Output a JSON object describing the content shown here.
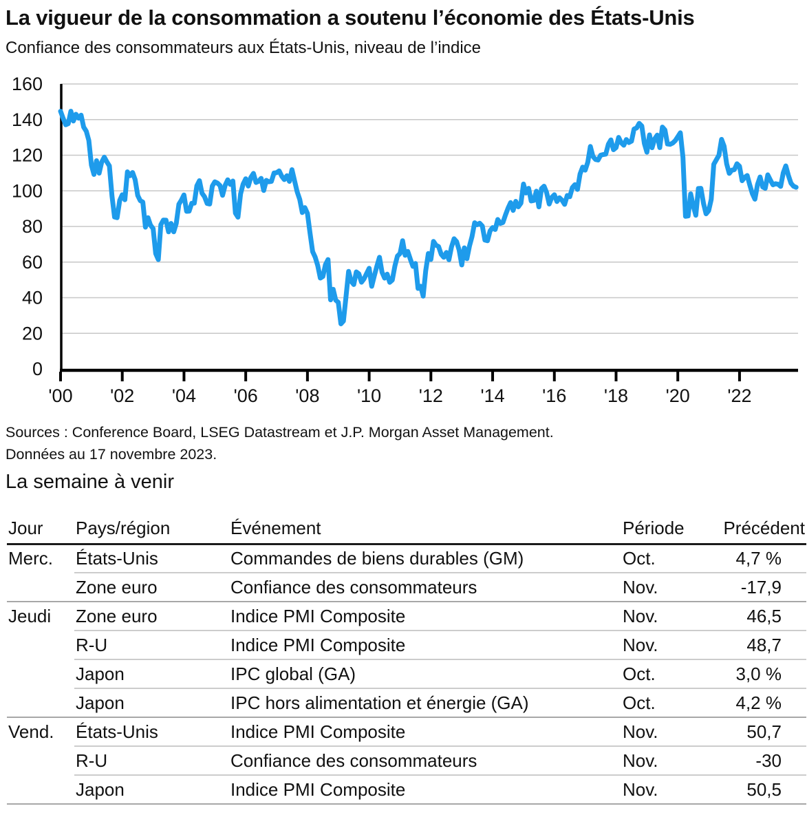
{
  "header": {
    "title": "La vigueur de la consommation a soutenu l’économie des États-Unis",
    "subtitle": "Confiance des consommateurs aux États-Unis, niveau de l’indice"
  },
  "chart_data": {
    "type": "line",
    "title": "La vigueur de la consommation a soutenu l’économie des États-Unis",
    "subtitle": "Confiance des consommateurs aux États-Unis, niveau de l’indice",
    "series_name": "Indice de confiance des consommateurs (Conference Board)",
    "frequency": "monthly",
    "x_start": "2000-01",
    "x_end": "2023-11",
    "ylim": [
      0,
      160
    ],
    "yticks": [
      0,
      20,
      40,
      60,
      80,
      100,
      120,
      140,
      160
    ],
    "xtick_years": [
      2000,
      2002,
      2004,
      2006,
      2008,
      2010,
      2012,
      2014,
      2016,
      2018,
      2020,
      2022
    ],
    "xtick_labels": [
      "'00",
      "'02",
      "'04",
      "'06",
      "'08",
      "'10",
      "'12",
      "'14",
      "'16",
      "'18",
      "'20",
      "'22"
    ],
    "grid": true,
    "line_color": "#1E9BEB",
    "grid_color": "#c7c7c7",
    "axis_color": "#000000",
    "values": [
      144.7,
      140.8,
      137.1,
      137.7,
      144.7,
      139.2,
      143.0,
      140.8,
      142.5,
      135.8,
      133.5,
      128.3,
      114.4,
      109.2,
      116.9,
      109.9,
      116.1,
      118.9,
      116.3,
      114.0,
      97.0,
      85.3,
      84.9,
      94.6,
      97.8,
      95.0,
      110.7,
      108.5,
      110.3,
      106.3,
      97.4,
      94.5,
      93.7,
      79.6,
      84.9,
      80.7,
      78.8,
      64.8,
      61.4,
      81.0,
      83.6,
      83.5,
      77.0,
      81.7,
      77.0,
      81.7,
      92.5,
      94.8,
      97.7,
      88.5,
      88.6,
      93.0,
      93.1,
      102.8,
      105.7,
      98.7,
      96.7,
      92.9,
      92.6,
      102.7,
      105.1,
      104.4,
      103.0,
      97.5,
      103.1,
      106.2,
      103.6,
      105.5,
      87.5,
      85.2,
      98.3,
      103.8,
      106.8,
      102.7,
      107.5,
      109.8,
      104.7,
      105.4,
      107.0,
      100.2,
      105.9,
      105.1,
      105.3,
      110.0,
      110.2,
      111.2,
      108.2,
      106.3,
      108.5,
      105.3,
      111.9,
      105.6,
      99.5,
      95.2,
      87.8,
      90.6,
      87.3,
      76.4,
      65.9,
      62.8,
      58.1,
      51.0,
      51.9,
      58.5,
      61.4,
      38.8,
      44.7,
      38.6,
      37.4,
      25.3,
      26.9,
      40.8,
      54.8,
      49.3,
      47.4,
      54.5,
      53.4,
      48.7,
      50.6,
      53.6,
      56.5,
      46.4,
      52.3,
      57.7,
      62.7,
      54.3,
      51.0,
      53.2,
      48.6,
      49.9,
      57.8,
      63.4,
      64.8,
      72.0,
      63.8,
      66.0,
      61.7,
      57.6,
      59.2,
      45.2,
      46.4,
      40.9,
      55.2,
      64.8,
      61.5,
      71.6,
      69.5,
      68.7,
      64.4,
      62.7,
      65.4,
      61.3,
      68.4,
      73.1,
      71.5,
      66.7,
      58.4,
      68.0,
      61.9,
      69.0,
      74.3,
      82.1,
      81.0,
      81.8,
      80.2,
      72.4,
      72.0,
      77.5,
      79.4,
      78.3,
      83.9,
      81.7,
      82.2,
      86.4,
      90.3,
      93.4,
      89.0,
      94.1,
      91.0,
      93.1,
      103.8,
      98.8,
      101.4,
      94.3,
      94.6,
      99.8,
      91.0,
      101.3,
      102.6,
      99.1,
      92.6,
      96.3,
      97.8,
      94.0,
      96.1,
      94.7,
      92.4,
      97.4,
      96.7,
      101.8,
      103.5,
      100.8,
      109.4,
      113.3,
      111.6,
      116.1,
      124.9,
      119.4,
      117.6,
      117.3,
      120.0,
      120.4,
      120.6,
      126.2,
      128.6,
      123.1,
      124.3,
      130.0,
      127.0,
      125.6,
      128.8,
      127.1,
      127.9,
      134.7,
      135.3,
      137.9,
      136.4,
      126.6,
      121.7,
      131.4,
      124.2,
      129.2,
      131.3,
      124.3,
      135.8,
      134.2,
      126.3,
      126.1,
      126.8,
      128.2,
      130.4,
      132.6,
      118.8,
      85.7,
      85.9,
      98.3,
      91.7,
      86.3,
      101.3,
      101.4,
      92.9,
      87.1,
      88.9,
      95.2,
      114.9,
      117.5,
      120.0,
      128.9,
      125.1,
      115.2,
      109.8,
      111.6,
      111.9,
      115.2,
      113.8,
      105.7,
      107.6,
      108.6,
      103.2,
      98.4,
      95.3,
      103.6,
      107.8,
      102.2,
      101.4,
      109.0,
      106.0,
      103.4,
      104.0,
      103.7,
      102.5,
      110.1,
      114.0,
      108.7,
      104.3,
      102.6,
      102.0
    ]
  },
  "sources": {
    "line1": "Sources : Conference Board, LSEG Datastream et J.P. Morgan Asset Management.",
    "line2": "Données au 17 novembre 2023."
  },
  "week_ahead": {
    "title": "La semaine à venir",
    "columns": [
      "Jour",
      "Pays/région",
      "Événement",
      "Période",
      "Précédent"
    ],
    "rows": [
      {
        "day": "Merc.",
        "region": "États-Unis",
        "event": "Commandes de biens durables (GM)",
        "period": "Oct.",
        "previous": "4,7 %",
        "group_start": true
      },
      {
        "day": "",
        "region": "Zone euro",
        "event": "Confiance des consommateurs",
        "period": "Nov.",
        "previous": "-17,9",
        "group_start": false
      },
      {
        "day": "Jeudi",
        "region": "Zone euro",
        "event": "Indice PMI Composite",
        "period": "Nov.",
        "previous": "46,5",
        "group_start": true
      },
      {
        "day": "",
        "region": "R-U",
        "event": "Indice PMI Composite",
        "period": "Nov.",
        "previous": "48,7",
        "group_start": false
      },
      {
        "day": "",
        "region": "Japon",
        "event": "IPC global (GA)",
        "period": "Oct.",
        "previous": "3,0 %",
        "group_start": false
      },
      {
        "day": "",
        "region": "Japon",
        "event": "IPC hors alimentation et énergie (GA)",
        "period": "Oct.",
        "previous": "4,2 %",
        "group_start": false
      },
      {
        "day": "Vend.",
        "region": "États-Unis",
        "event": "Indice PMI Composite",
        "period": "Nov.",
        "previous": "50,7",
        "group_start": true
      },
      {
        "day": "",
        "region": "R-U",
        "event": "Confiance des consommateurs",
        "period": "Nov.",
        "previous": "-30",
        "group_start": false
      },
      {
        "day": "",
        "region": "Japon",
        "event": "Indice PMI Composite",
        "period": "Nov.",
        "previous": "50,5",
        "group_start": false
      }
    ]
  }
}
